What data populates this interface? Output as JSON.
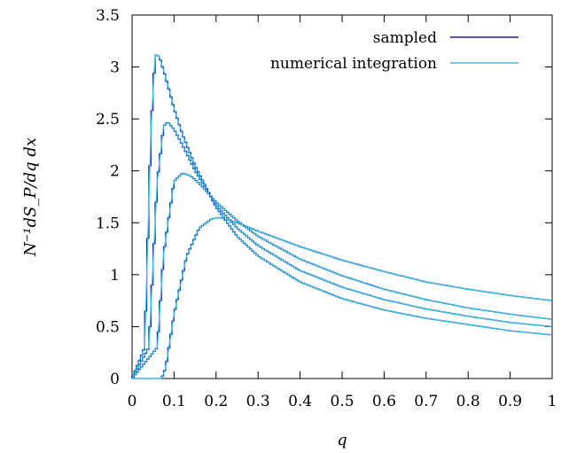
{
  "chart_data": {
    "type": "line",
    "title": "",
    "xlabel": "q",
    "ylabel": "N⁻¹dS_P/dq dx",
    "xlim": [
      0,
      1
    ],
    "ylim": [
      0,
      3.5
    ],
    "x_ticks": [
      "0",
      "0.1",
      "0.2",
      "0.3",
      "0.4",
      "0.5",
      "0.6",
      "0.7",
      "0.8",
      "0.9",
      "1"
    ],
    "y_ticks": [
      "0",
      "0.5",
      "1",
      "1.5",
      "2",
      "2.5",
      "3",
      "3.5"
    ],
    "legend_position": "top-right",
    "legend": [
      {
        "label": "sampled",
        "color": "#1f1fa6"
      },
      {
        "label": "numerical integration",
        "color": "#33c4e6"
      }
    ],
    "series": [
      {
        "x": [
          0.0,
          0.03,
          0.045,
          0.055,
          0.065,
          0.08,
          0.1,
          0.12,
          0.15,
          0.2,
          0.25,
          0.3,
          0.4,
          0.5,
          0.6,
          0.7,
          0.8,
          0.9,
          1.0
        ],
        "y": [
          0.0,
          0.3,
          2.4,
          3.12,
          3.1,
          2.9,
          2.6,
          2.35,
          2.05,
          1.65,
          1.37,
          1.18,
          0.93,
          0.77,
          0.66,
          0.58,
          0.52,
          0.46,
          0.42
        ]
      },
      {
        "x": [
          0.0,
          0.04,
          0.06,
          0.075,
          0.085,
          0.1,
          0.12,
          0.15,
          0.2,
          0.25,
          0.3,
          0.4,
          0.5,
          0.6,
          0.7,
          0.8,
          0.9,
          1.0
        ],
        "y": [
          0.0,
          0.3,
          1.9,
          2.43,
          2.47,
          2.4,
          2.25,
          2.0,
          1.67,
          1.45,
          1.28,
          1.04,
          0.88,
          0.76,
          0.67,
          0.6,
          0.54,
          0.5
        ]
      },
      {
        "x": [
          0.0,
          0.06,
          0.075,
          0.1,
          0.12,
          0.14,
          0.16,
          0.2,
          0.25,
          0.3,
          0.4,
          0.5,
          0.6,
          0.7,
          0.8,
          0.9,
          1.0
        ],
        "y": [
          0.0,
          0.3,
          1.2,
          1.9,
          1.98,
          1.95,
          1.88,
          1.7,
          1.52,
          1.37,
          1.15,
          0.99,
          0.86,
          0.76,
          0.68,
          0.62,
          0.57
        ]
      },
      {
        "x": [
          0.0,
          0.07,
          0.08,
          0.1,
          0.13,
          0.16,
          0.19,
          0.21,
          0.25,
          0.3,
          0.4,
          0.5,
          0.6,
          0.7,
          0.8,
          0.9,
          1.0
        ],
        "y": [
          0.0,
          0.0,
          0.1,
          0.62,
          1.18,
          1.45,
          1.54,
          1.55,
          1.5,
          1.42,
          1.27,
          1.14,
          1.03,
          0.93,
          0.86,
          0.8,
          0.75
        ]
      }
    ]
  }
}
